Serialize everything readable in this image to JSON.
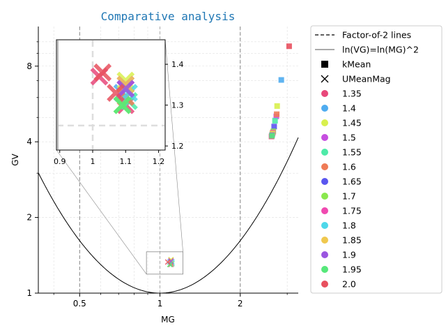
{
  "chart_data": {
    "type": "scatter",
    "title": "Comparative analysis",
    "xlabel": "MG",
    "ylabel": "GV",
    "x_scale": "log",
    "y_scale": "log",
    "xlim": [
      0.35,
      3.3
    ],
    "ylim": [
      1.0,
      11.5
    ],
    "x_ticks": [
      "0.5",
      "1",
      "2"
    ],
    "y_ticks": [
      "1",
      "2",
      "4",
      "8"
    ],
    "grid": true,
    "legend_position": "outside-right",
    "legend": {
      "factor2": "Factor-of-2 lines",
      "curve": "ln(VG)=ln(MG)^2",
      "kmean": "kMean",
      "umeanmag": "UMeanMag"
    },
    "colors": {
      "1.35": "#e8487a",
      "1.4": "#4facf0",
      "1.45": "#d8f04e",
      "1.5": "#c64ee0",
      "1.55": "#4eeaa8",
      "1.6": "#ef7b56",
      "1.65": "#5a56ef",
      "1.7": "#8ae84e",
      "1.75": "#f04ab0",
      "1.8": "#4ed8ea",
      "1.85": "#f0c84e",
      "1.9": "#9a56e0",
      "1.95": "#56e87a",
      "2.0": "#e8505e"
    },
    "series": [
      {
        "name": "1.35",
        "kmean": [
          2.62,
          4.2
        ],
        "umean": [
          1.1,
          1.3
        ]
      },
      {
        "name": "1.4",
        "kmean": [
          2.85,
          7.05
        ],
        "umean": [
          1.09,
          1.33
        ]
      },
      {
        "name": "1.45",
        "kmean": [
          2.75,
          5.55
        ],
        "umean": [
          1.1,
          1.36
        ]
      },
      {
        "name": "1.5",
        "kmean": [
          2.73,
          5.05
        ],
        "umean": [
          1.1,
          1.35
        ]
      },
      {
        "name": "1.55",
        "kmean": [
          2.7,
          4.85
        ],
        "umean": [
          1.11,
          1.31
        ]
      },
      {
        "name": "1.6",
        "kmean": [
          2.74,
          5.15
        ],
        "umean": [
          1.1,
          1.32
        ]
      },
      {
        "name": "1.65",
        "kmean": [
          2.68,
          4.6
        ],
        "umean": [
          1.1,
          1.34
        ]
      },
      {
        "name": "1.7",
        "kmean": [
          2.66,
          4.4
        ],
        "umean": [
          1.09,
          1.3
        ]
      },
      {
        "name": "1.75",
        "kmean": [
          2.65,
          4.35
        ],
        "umean": [
          1.1,
          1.34
        ]
      },
      {
        "name": "1.8",
        "kmean": [
          2.64,
          4.3
        ],
        "umean": [
          1.11,
          1.33
        ]
      },
      {
        "name": "1.85",
        "kmean": [
          2.64,
          4.32
        ],
        "umean": [
          1.1,
          1.35
        ]
      },
      {
        "name": "1.9",
        "kmean": [
          2.63,
          4.25
        ],
        "umean": [
          1.1,
          1.34
        ]
      },
      {
        "name": "1.95",
        "kmean": [
          2.63,
          4.23
        ],
        "umean": [
          1.09,
          1.3
        ]
      },
      {
        "name": "2.0",
        "kmean": [
          3.05,
          9.6
        ],
        "umean": [
          1.07,
          1.33
        ]
      }
    ],
    "inset": {
      "xlim": [
        0.89,
        1.22
      ],
      "ylim": [
        1.19,
        1.46
      ],
      "x_ticks": [
        "0.9",
        "1",
        "1.1",
        "1.2"
      ],
      "y_ticks": [
        "1.2",
        "1.3",
        "1.4"
      ],
      "outliers": [
        {
          "series": "1.35",
          "x": 1.02,
          "y": 1.37
        },
        {
          "series": "2.0",
          "x": 1.03,
          "y": 1.38
        }
      ]
    }
  }
}
